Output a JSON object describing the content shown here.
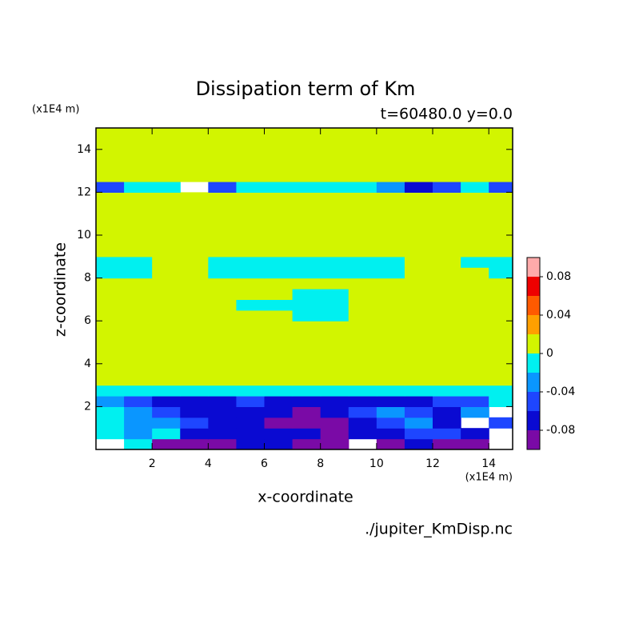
{
  "chart_data": {
    "type": "contour",
    "title": "Dissipation term of Km",
    "subtitle": "t=60480.0 y=0.0",
    "x_label": "x-coordinate",
    "y_label": "z-coordinate",
    "x_unit": "(x1E4 m)",
    "y_unit": "(x1E4 m)",
    "footer": "./jupiter_KmDisp.nc",
    "xlim": [
      0,
      14.85
    ],
    "ylim": [
      0,
      15
    ],
    "xticks": [
      2,
      4,
      6,
      8,
      10,
      12,
      14
    ],
    "yticks": [
      2,
      4,
      6,
      8,
      10,
      12,
      14
    ],
    "x": [
      0.5,
      1.5,
      2.5,
      3.5,
      4.5,
      5.5,
      6.5,
      7.5,
      8.5,
      9.5,
      10.5,
      11.5,
      12.5,
      13.5,
      14.5
    ],
    "y": [
      0.25,
      0.75,
      1.25,
      1.75,
      2.25,
      2.75,
      3.25,
      3.75,
      4.25,
      4.75,
      5.25,
      5.75,
      6.25,
      6.75,
      7.25,
      7.75,
      8.25,
      8.75,
      9.25,
      9.75,
      10.25,
      10.75,
      11.25,
      11.75,
      12.25,
      12.75,
      13.25,
      13.75,
      14.25,
      14.75
    ],
    "z": [
      [
        -0.11,
        -0.01,
        -0.09,
        -0.09,
        -0.09,
        -0.07,
        -0.07,
        -0.09,
        -0.09,
        -0.11,
        -0.09,
        -0.07,
        -0.09,
        -0.09,
        -0.11
      ],
      [
        -0.01,
        -0.03,
        -0.01,
        -0.07,
        -0.07,
        -0.07,
        -0.07,
        -0.07,
        -0.09,
        -0.07,
        -0.07,
        -0.05,
        -0.05,
        -0.07,
        -0.11
      ],
      [
        -0.01,
        -0.03,
        -0.03,
        -0.05,
        -0.07,
        -0.07,
        -0.09,
        -0.09,
        -0.09,
        -0.07,
        -0.05,
        -0.03,
        -0.07,
        -0.11,
        -0.05
      ],
      [
        -0.01,
        -0.03,
        -0.05,
        -0.07,
        -0.07,
        -0.07,
        -0.07,
        -0.09,
        -0.07,
        -0.05,
        -0.03,
        -0.05,
        -0.07,
        -0.03,
        -0.11
      ],
      [
        -0.03,
        -0.05,
        -0.07,
        -0.07,
        -0.07,
        -0.05,
        -0.07,
        -0.07,
        -0.07,
        -0.07,
        -0.07,
        -0.07,
        -0.05,
        -0.05,
        -0.01
      ],
      [
        -0.01,
        -0.01,
        -0.01,
        -0.01,
        -0.01,
        -0.01,
        -0.01,
        -0.01,
        -0.01,
        -0.01,
        -0.01,
        -0.01,
        -0.01,
        -0.01,
        -0.01
      ],
      [
        0.01,
        0.01,
        0.01,
        0.01,
        0.01,
        0.01,
        0.01,
        0.01,
        0.01,
        0.01,
        0.01,
        0.01,
        0.01,
        0.01,
        0.01
      ],
      [
        0.01,
        0.01,
        0.01,
        0.01,
        0.01,
        0.01,
        0.01,
        0.01,
        0.01,
        0.01,
        0.01,
        0.01,
        0.01,
        0.01,
        0.01
      ],
      [
        0.01,
        0.01,
        0.01,
        0.01,
        0.01,
        0.01,
        0.01,
        0.01,
        0.01,
        0.01,
        0.01,
        0.01,
        0.01,
        0.01,
        0.01
      ],
      [
        0.01,
        0.01,
        0.01,
        0.01,
        0.01,
        0.01,
        0.01,
        0.01,
        0.01,
        0.01,
        0.01,
        0.01,
        0.01,
        0.01,
        0.01
      ],
      [
        0.01,
        0.01,
        0.01,
        0.01,
        0.01,
        0.01,
        0.01,
        0.01,
        0.01,
        0.01,
        0.01,
        0.01,
        0.01,
        0.01,
        0.01
      ],
      [
        0.01,
        0.01,
        0.01,
        0.01,
        0.01,
        0.01,
        0.01,
        0.01,
        0.01,
        0.01,
        0.01,
        0.01,
        0.01,
        0.01,
        0.01
      ],
      [
        0.01,
        0.01,
        0.01,
        0.01,
        0.01,
        0.01,
        0.01,
        -0.01,
        -0.01,
        0.01,
        0.01,
        0.01,
        0.01,
        0.01,
        0.01
      ],
      [
        0.01,
        0.01,
        0.01,
        0.01,
        0.01,
        -0.01,
        -0.01,
        -0.01,
        -0.01,
        0.01,
        0.01,
        0.01,
        0.01,
        0.01,
        0.01
      ],
      [
        0.01,
        0.01,
        0.01,
        0.01,
        0.01,
        0.01,
        0.01,
        -0.01,
        -0.01,
        0.01,
        0.01,
        0.01,
        0.01,
        0.01,
        0.01
      ],
      [
        0.01,
        0.01,
        0.01,
        0.01,
        0.01,
        0.01,
        0.01,
        0.01,
        0.01,
        0.01,
        0.01,
        0.01,
        0.01,
        0.01,
        0.01
      ],
      [
        -0.01,
        -0.01,
        0.01,
        0.01,
        -0.01,
        -0.01,
        -0.01,
        -0.01,
        -0.01,
        -0.01,
        -0.01,
        0.01,
        0.01,
        0.01,
        -0.01
      ],
      [
        -0.01,
        -0.01,
        0.01,
        0.01,
        -0.01,
        -0.01,
        -0.01,
        -0.01,
        -0.01,
        -0.01,
        -0.01,
        0.01,
        0.01,
        -0.01,
        -0.01
      ],
      [
        0.01,
        0.01,
        0.01,
        0.01,
        0.01,
        0.01,
        0.01,
        0.01,
        0.01,
        0.01,
        0.01,
        0.01,
        0.01,
        0.01,
        0.01
      ],
      [
        0.01,
        0.01,
        0.01,
        0.01,
        0.01,
        0.01,
        0.01,
        0.01,
        0.01,
        0.01,
        0.01,
        0.01,
        0.01,
        0.01,
        0.01
      ],
      [
        0.01,
        0.01,
        0.01,
        0.01,
        0.01,
        0.01,
        0.01,
        0.01,
        0.01,
        0.01,
        0.01,
        0.01,
        0.01,
        0.01,
        0.01
      ],
      [
        0.01,
        0.01,
        0.01,
        0.01,
        0.01,
        0.01,
        0.01,
        0.01,
        0.01,
        0.01,
        0.01,
        0.01,
        0.01,
        0.01,
        0.01
      ],
      [
        0.01,
        0.01,
        0.01,
        0.01,
        0.01,
        0.01,
        0.01,
        0.01,
        0.01,
        0.01,
        0.01,
        0.01,
        0.01,
        0.01,
        0.01
      ],
      [
        0.01,
        0.01,
        0.01,
        0.01,
        0.01,
        0.01,
        0.01,
        0.01,
        0.01,
        0.01,
        0.01,
        0.01,
        0.01,
        0.01,
        0.01
      ],
      [
        -0.05,
        -0.01,
        -0.01,
        -0.11,
        -0.05,
        -0.01,
        -0.01,
        -0.01,
        -0.01,
        -0.01,
        -0.03,
        -0.07,
        -0.05,
        -0.01,
        -0.05
      ],
      [
        0.01,
        0.01,
        0.01,
        0.01,
        0.01,
        0.01,
        0.01,
        0.01,
        0.01,
        0.01,
        0.01,
        0.01,
        0.01,
        0.01,
        0.01
      ],
      [
        0.01,
        0.01,
        0.01,
        0.01,
        0.01,
        0.01,
        0.01,
        0.01,
        0.01,
        0.01,
        0.01,
        0.01,
        0.01,
        0.01,
        0.01
      ],
      [
        0.01,
        0.01,
        0.01,
        0.01,
        0.01,
        0.01,
        0.01,
        0.01,
        0.01,
        0.01,
        0.01,
        0.01,
        0.01,
        0.01,
        0.01
      ],
      [
        0.01,
        0.01,
        0.01,
        0.01,
        0.01,
        0.01,
        0.01,
        0.01,
        0.01,
        0.01,
        0.01,
        0.01,
        0.01,
        0.01,
        0.01
      ],
      [
        0.01,
        0.01,
        0.01,
        0.01,
        0.01,
        0.01,
        0.01,
        0.01,
        0.01,
        0.01,
        0.01,
        0.01,
        0.01,
        0.01,
        0.01
      ]
    ],
    "levels": [
      -0.1,
      -0.08,
      -0.06,
      -0.04,
      -0.02,
      0,
      0.02,
      0.04,
      0.06,
      0.08,
      0.1
    ],
    "colors": [
      "#7a0aa6",
      "#0a0ad2",
      "#1e46ff",
      "#0a96ff",
      "#00f0f0",
      "#d2f500",
      "#ffa000",
      "#ff5a00",
      "#ee0000",
      "#ffaaaa"
    ],
    "colorbar_ticks": [
      0.08,
      0.04,
      0,
      -0.04,
      -0.08
    ]
  }
}
